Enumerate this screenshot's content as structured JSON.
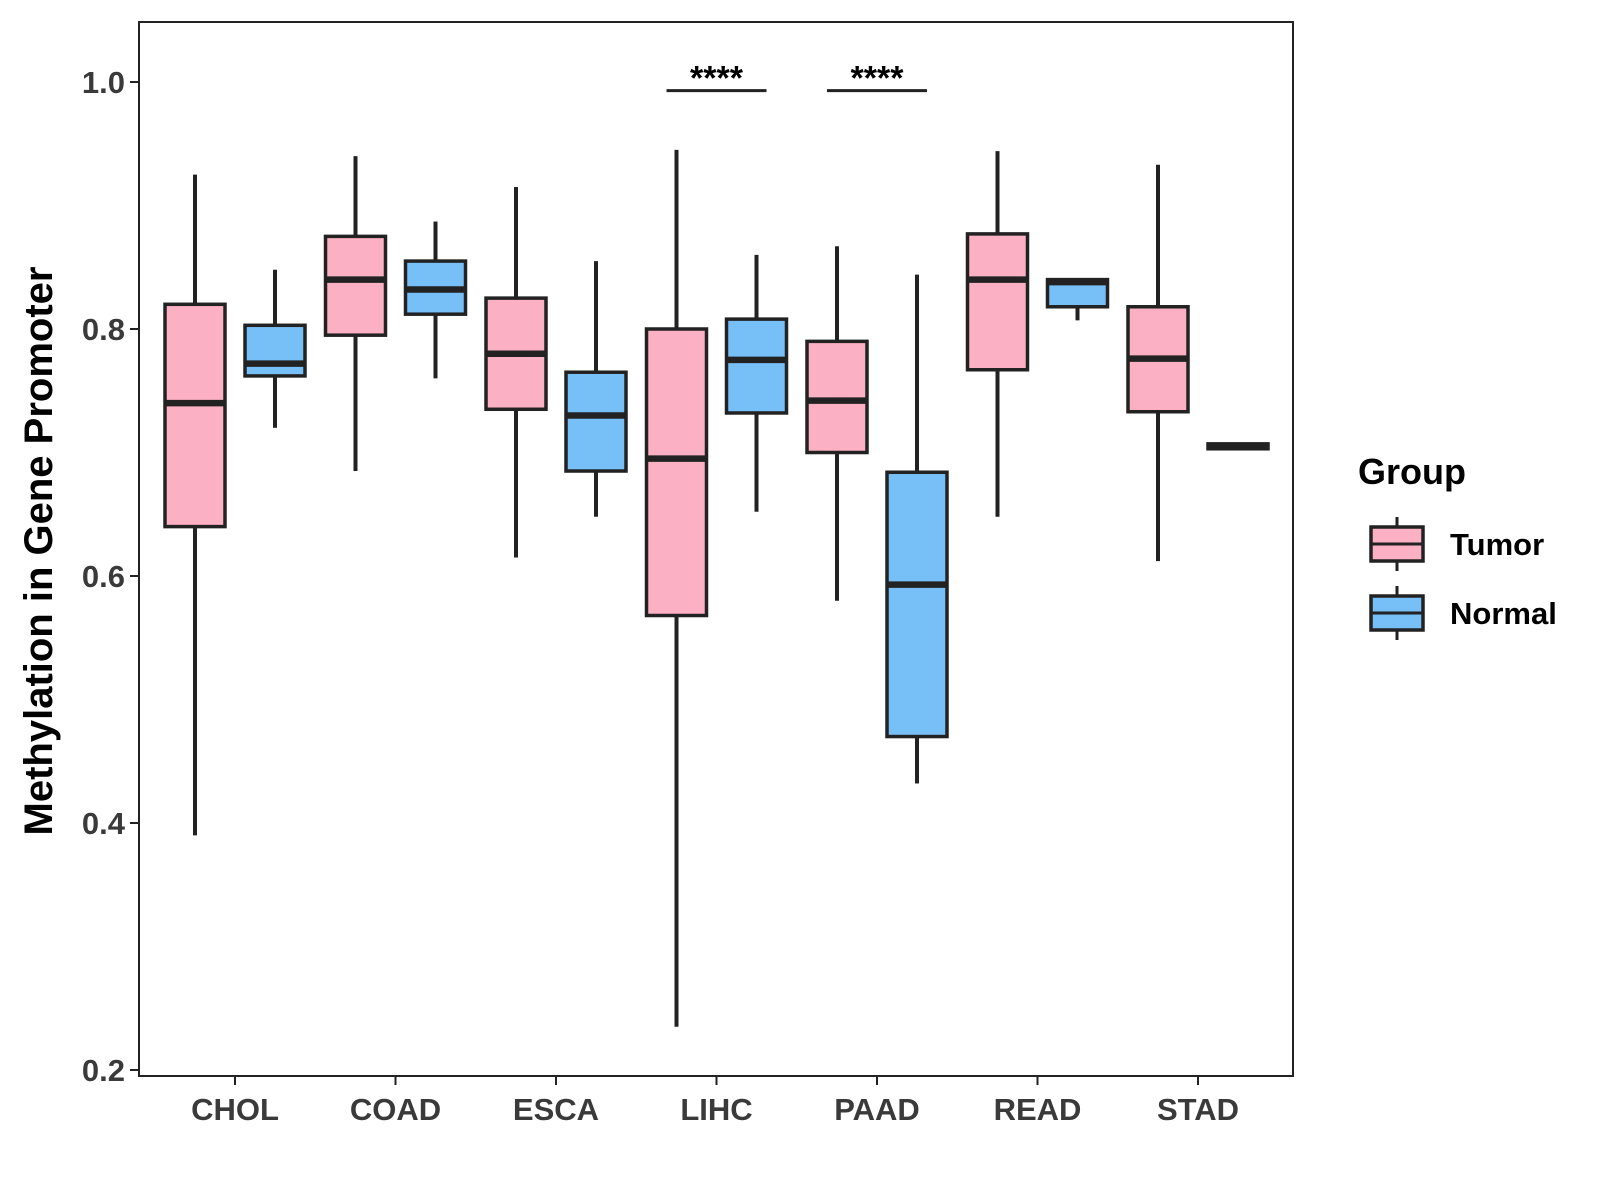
{
  "chart_data": {
    "type": "boxplot",
    "ylabel": "Methylation in Gene Promoter",
    "xlabel": "",
    "ylim": [
      0.2,
      1.05
    ],
    "yticks": [
      0.2,
      0.4,
      0.6,
      0.8,
      1.0
    ],
    "ytick_labels": [
      "0.2",
      "0.4",
      "0.6",
      "0.8",
      "1.0"
    ],
    "categories": [
      "CHOL",
      "COAD",
      "ESCA",
      "LIHC",
      "PAAD",
      "READ",
      "STAD"
    ],
    "legend": {
      "title": "Group",
      "position": "right",
      "entries": [
        {
          "name": "Tumor",
          "color": "#FBB0C3"
        },
        {
          "name": "Normal",
          "color": "#77BFF7"
        }
      ]
    },
    "series": [
      {
        "name": "Tumor",
        "color": "#FBB0C3",
        "boxes": [
          {
            "category": "CHOL",
            "min": 0.39,
            "q1": 0.64,
            "median": 0.74,
            "q3": 0.82,
            "max": 0.925
          },
          {
            "category": "COAD",
            "min": 0.685,
            "q1": 0.795,
            "median": 0.84,
            "q3": 0.875,
            "max": 0.94
          },
          {
            "category": "ESCA",
            "min": 0.615,
            "q1": 0.735,
            "median": 0.78,
            "q3": 0.825,
            "max": 0.915
          },
          {
            "category": "LIHC",
            "min": 0.235,
            "q1": 0.568,
            "median": 0.695,
            "q3": 0.8,
            "max": 0.945
          },
          {
            "category": "PAAD",
            "min": 0.58,
            "q1": 0.7,
            "median": 0.742,
            "q3": 0.79,
            "max": 0.867
          },
          {
            "category": "READ",
            "min": 0.648,
            "q1": 0.767,
            "median": 0.84,
            "q3": 0.877,
            "max": 0.944
          },
          {
            "category": "STAD",
            "min": 0.612,
            "q1": 0.733,
            "median": 0.776,
            "q3": 0.818,
            "max": 0.933
          }
        ]
      },
      {
        "name": "Normal",
        "color": "#77BFF7",
        "boxes": [
          {
            "category": "CHOL",
            "min": 0.72,
            "q1": 0.762,
            "median": 0.772,
            "q3": 0.803,
            "max": 0.848
          },
          {
            "category": "COAD",
            "min": 0.76,
            "q1": 0.812,
            "median": 0.832,
            "q3": 0.855,
            "max": 0.887
          },
          {
            "category": "ESCA",
            "min": 0.648,
            "q1": 0.685,
            "median": 0.73,
            "q3": 0.765,
            "max": 0.855
          },
          {
            "category": "LIHC",
            "min": 0.652,
            "q1": 0.732,
            "median": 0.775,
            "q3": 0.808,
            "max": 0.86
          },
          {
            "category": "PAAD",
            "min": 0.432,
            "q1": 0.47,
            "median": 0.593,
            "q3": 0.684,
            "max": 0.844
          },
          {
            "category": "READ",
            "min": 0.807,
            "q1": 0.818,
            "median": 0.838,
            "q3": 0.84,
            "max": 0.841
          },
          {
            "category": "STAD",
            "min": 0.703,
            "q1": 0.703,
            "median": 0.705,
            "q3": 0.707,
            "max": 0.707
          }
        ]
      }
    ],
    "significance": [
      {
        "category": "LIHC",
        "label": "****",
        "y": 0.993
      },
      {
        "category": "PAAD",
        "label": "****",
        "y": 0.993
      }
    ]
  }
}
